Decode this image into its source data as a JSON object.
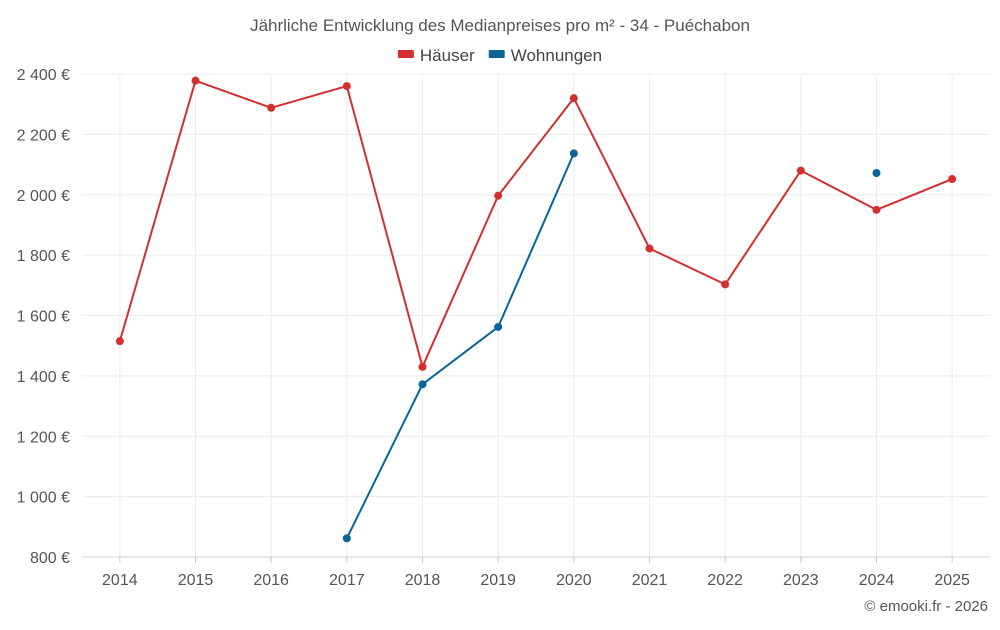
{
  "chart_data": {
    "type": "line",
    "title": "Jährliche Entwicklung des Medianpreises pro m² - 34 - Puéchabon",
    "categories": [
      "2014",
      "2015",
      "2016",
      "2017",
      "2018",
      "2019",
      "2020",
      "2021",
      "2022",
      "2023",
      "2024",
      "2025"
    ],
    "y_tick_labels": [
      "800 €",
      "1 000 €",
      "1 200 €",
      "1 400 €",
      "1 600 €",
      "1 800 €",
      "2 000 €",
      "2 200 €",
      "2 400 €"
    ],
    "y_tick_values": [
      800,
      1000,
      1200,
      1400,
      1600,
      1800,
      2000,
      2200,
      2400
    ],
    "ylim": [
      800,
      2400
    ],
    "grid": true,
    "legend_position": "top-center",
    "series": [
      {
        "name": "Häuser",
        "color": "#d32f2f",
        "values": [
          1515,
          2378,
          2288,
          2360,
          1430,
          1997,
          2320,
          1822,
          1703,
          2080,
          1950,
          2052
        ]
      },
      {
        "name": "Wohnungen",
        "color": "#0a6496",
        "values": [
          null,
          null,
          null,
          862,
          1372,
          1562,
          2137,
          null,
          null,
          null,
          2072,
          null
        ]
      }
    ]
  },
  "footer": {
    "credit": "© emooki.fr - 2026"
  }
}
